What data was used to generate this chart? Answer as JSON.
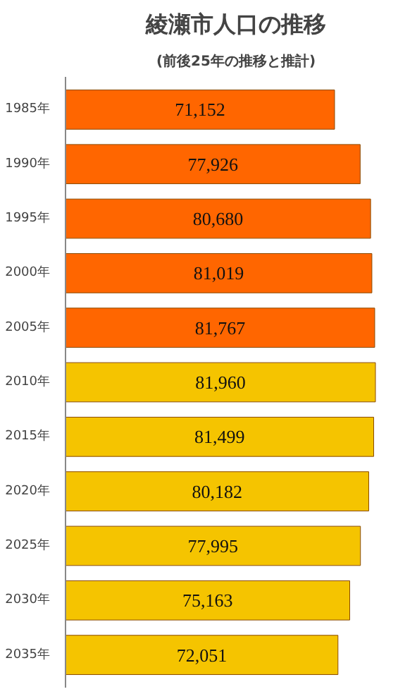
{
  "chart_data": {
    "type": "bar",
    "orientation": "horizontal",
    "title": "綾瀬市人口の推移",
    "subtitle": "(前後25年の推移と推計)",
    "categories": [
      "1985年",
      "1990年",
      "1995年",
      "2000年",
      "2005年",
      "2010年",
      "2015年",
      "2020年",
      "2025年",
      "2030年",
      "2035年"
    ],
    "values": [
      71152,
      77926,
      80680,
      81019,
      81767,
      81960,
      81499,
      80182,
      77995,
      75163,
      72051
    ],
    "value_labels": [
      "71,152",
      "77,926",
      "80,680",
      "81,019",
      "81,767",
      "81,960",
      "81,499",
      "80,182",
      "77,995",
      "75,163",
      "72,051"
    ],
    "colors": [
      "#ff6600",
      "#ff6600",
      "#ff6600",
      "#ff6600",
      "#ff6600",
      "#f5c400",
      "#f5c400",
      "#f5c400",
      "#f5c400",
      "#f5c400",
      "#f5c400"
    ],
    "grid": false
  }
}
